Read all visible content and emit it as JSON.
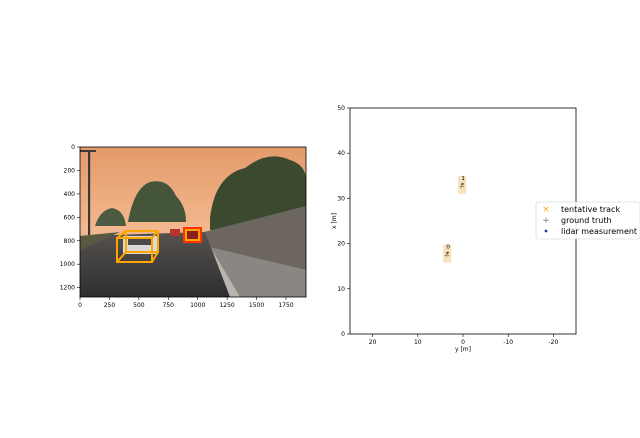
{
  "chart_data": [
    {
      "type": "image",
      "description_role": "camera image axes",
      "xlim": [
        0,
        1920
      ],
      "ylim": [
        1280,
        0
      ],
      "xticks": [
        "0",
        "250",
        "500",
        "750",
        "1000",
        "1250",
        "1500",
        "1750"
      ],
      "xtick_values": [
        0,
        250,
        500,
        750,
        1000,
        1250,
        1500,
        1750
      ],
      "yticks": [
        "0",
        "200",
        "400",
        "600",
        "800",
        "1000",
        "1200"
      ],
      "ytick_values": [
        0,
        200,
        400,
        600,
        800,
        1000,
        1200
      ],
      "colors": {
        "sky_top": "#e8a070",
        "sky_bottom": "#f4b890",
        "road": "#3d3d40",
        "box": "#ffa500",
        "box_red": "#ff3300"
      },
      "boxes": [
        {
          "x": [
            300,
            650
          ],
          "y": [
            730,
            980
          ],
          "color": "#ffa500"
        },
        {
          "x": [
            880,
            1010
          ],
          "y": [
            700,
            820
          ],
          "color": "#ffa500"
        }
      ]
    },
    {
      "type": "scatter",
      "xlabel": "y [m]",
      "ylabel": "x [m]",
      "xlim": [
        25,
        -25
      ],
      "ylim": [
        0,
        50
      ],
      "xticks": [
        "20",
        "10",
        "0",
        "-10",
        "-20"
      ],
      "xtick_values": [
        20,
        10,
        0,
        -10,
        -20
      ],
      "yticks": [
        "0",
        "10",
        "20",
        "30",
        "40",
        "50"
      ],
      "ytick_values": [
        0,
        10,
        20,
        30,
        40,
        50
      ],
      "legend_position": "right",
      "legend": [
        {
          "label": "tentative track",
          "marker": "x",
          "color": "#ffa500"
        },
        {
          "label": "ground truth",
          "marker": "+",
          "color": "#708090"
        },
        {
          "label": "lidar measurement",
          "marker": "dot",
          "color": "#1f3a93"
        }
      ],
      "tracks": [
        {
          "id": "0",
          "y": 3.5,
          "x": 17.8
        },
        {
          "id": "1",
          "y": 0.2,
          "x": 33.0
        }
      ],
      "ground_truth": [
        {
          "y": 3.6,
          "x": 17.6
        },
        {
          "y": 0.3,
          "x": 32.8
        }
      ],
      "lidar": [
        {
          "y": 3.4,
          "x": 18.0
        },
        {
          "y": 0.1,
          "x": 33.2
        }
      ]
    }
  ]
}
